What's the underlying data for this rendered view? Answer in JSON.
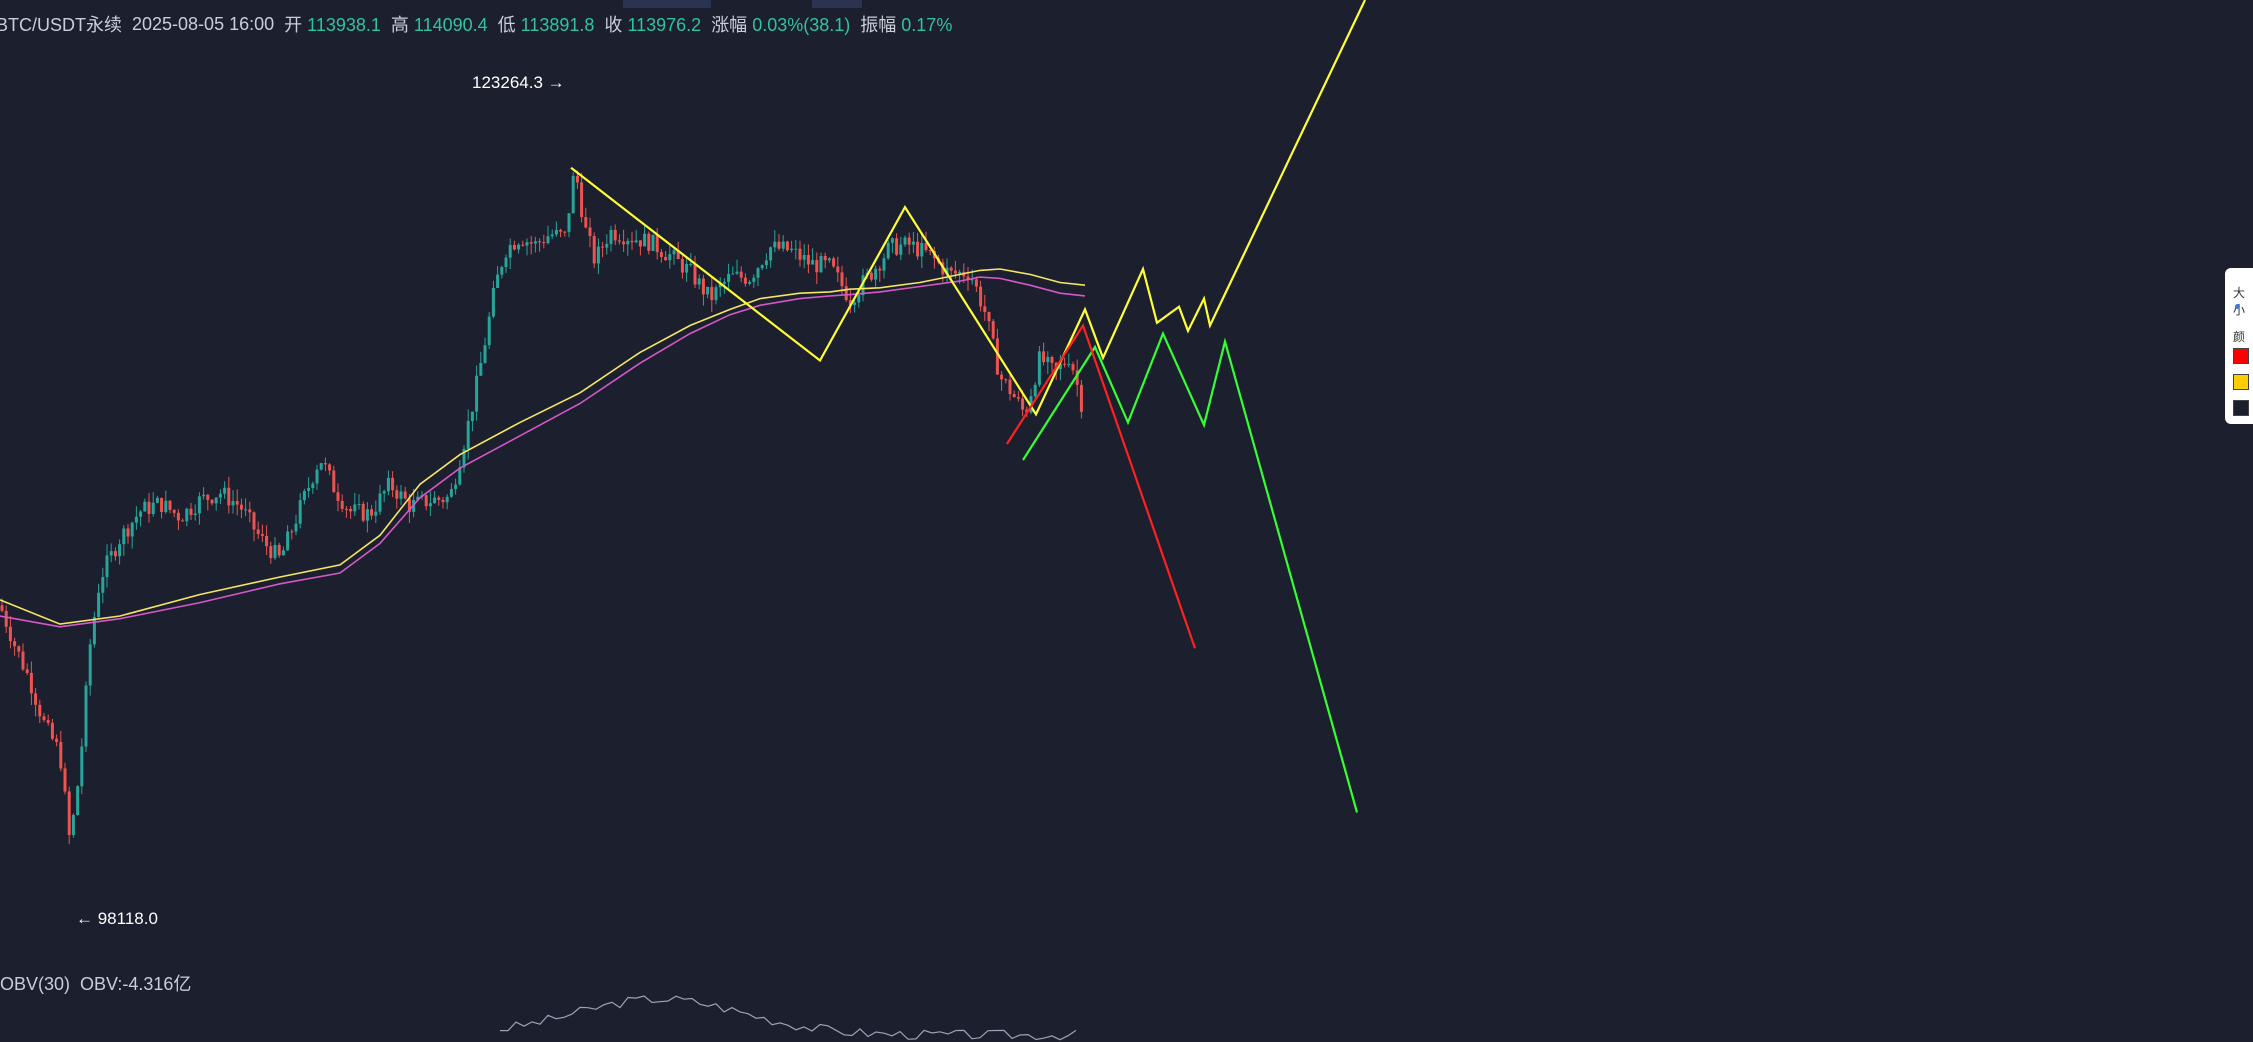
{
  "header": {
    "symbol": "BTC/USDT永续",
    "datetime": "2025-08-05 16:00",
    "open_label": "开",
    "open_value": "113938.1",
    "high_label": "高",
    "high_value": "114090.4",
    "low_label": "低",
    "low_value": "113891.8",
    "close_label": "收",
    "close_value": "113976.2",
    "change_label": "涨幅",
    "change_value": "0.03%(38.1)",
    "amp_label": "振幅",
    "amp_value": "0.17%"
  },
  "markers": {
    "high_label": "123264.3 →",
    "low_label": "← 98118.0"
  },
  "indicator": {
    "name": "OBV(30)",
    "value": "OBV:-4.316亿"
  },
  "side_panel": {
    "size_label": "大小",
    "color_label": "颜色",
    "swatches": [
      "#ff0000",
      "#ffcc00",
      "#1b1f2e"
    ]
  },
  "colors": {
    "background": "#1b1f2e",
    "up": "#26a69a",
    "down": "#ef5350",
    "ma_slow": "#f5e663",
    "ma_fast": "#d458c7",
    "scenario_yellow": "#ffff33",
    "scenario_green": "#33ff33",
    "scenario_red": "#ff2020"
  },
  "chart_data": {
    "type": "line",
    "price_range": [
      94000,
      129500
    ],
    "peak": 123264.3,
    "trough": 98118.0,
    "ma_slow": [
      [
        0,
        107200
      ],
      [
        60,
        106300
      ],
      [
        120,
        106600
      ],
      [
        200,
        107400
      ],
      [
        280,
        108050
      ],
      [
        340,
        108500
      ],
      [
        380,
        109600
      ],
      [
        420,
        111500
      ],
      [
        460,
        112600
      ],
      [
        520,
        113800
      ],
      [
        580,
        114900
      ],
      [
        640,
        116400
      ],
      [
        690,
        117400
      ],
      [
        730,
        118000
      ],
      [
        760,
        118400
      ],
      [
        800,
        118600
      ],
      [
        830,
        118650
      ],
      [
        850,
        118750
      ],
      [
        880,
        118800
      ],
      [
        920,
        119000
      ],
      [
        960,
        119300
      ],
      [
        980,
        119450
      ],
      [
        1000,
        119500
      ],
      [
        1030,
        119300
      ],
      [
        1060,
        119000
      ],
      [
        1085,
        118900
      ]
    ],
    "ma_fast": [
      [
        0,
        106600
      ],
      [
        60,
        106200
      ],
      [
        120,
        106500
      ],
      [
        200,
        107100
      ],
      [
        280,
        107800
      ],
      [
        340,
        108200
      ],
      [
        380,
        109300
      ],
      [
        420,
        111000
      ],
      [
        460,
        112100
      ],
      [
        520,
        113300
      ],
      [
        580,
        114500
      ],
      [
        640,
        116000
      ],
      [
        690,
        117100
      ],
      [
        730,
        117800
      ],
      [
        760,
        118150
      ],
      [
        800,
        118400
      ],
      [
        830,
        118500
      ],
      [
        850,
        118550
      ],
      [
        880,
        118650
      ],
      [
        920,
        118850
      ],
      [
        960,
        119050
      ],
      [
        980,
        119200
      ],
      [
        1000,
        119150
      ],
      [
        1030,
        118900
      ],
      [
        1060,
        118600
      ],
      [
        1085,
        118500
      ]
    ],
    "candle_path": [
      [
        0,
        107000
      ],
      [
        15,
        105500
      ],
      [
        30,
        104200
      ],
      [
        45,
        102500
      ],
      [
        60,
        101500
      ],
      [
        70,
        98118
      ],
      [
        80,
        101000
      ],
      [
        90,
        105500
      ],
      [
        100,
        108000
      ],
      [
        120,
        109500
      ],
      [
        140,
        110500
      ],
      [
        160,
        110800
      ],
      [
        180,
        110300
      ],
      [
        200,
        110900
      ],
      [
        220,
        111200
      ],
      [
        240,
        110700
      ],
      [
        260,
        109500
      ],
      [
        280,
        108700
      ],
      [
        300,
        110600
      ],
      [
        320,
        112500
      ],
      [
        335,
        111300
      ],
      [
        350,
        110500
      ],
      [
        370,
        110400
      ],
      [
        390,
        111500
      ],
      [
        410,
        110700
      ],
      [
        430,
        110900
      ],
      [
        450,
        111000
      ],
      [
        470,
        114000
      ],
      [
        480,
        115800
      ],
      [
        495,
        118800
      ],
      [
        505,
        120200
      ],
      [
        520,
        120700
      ],
      [
        535,
        120400
      ],
      [
        550,
        120800
      ],
      [
        565,
        120700
      ],
      [
        575,
        123264
      ],
      [
        585,
        121000
      ],
      [
        595,
        119800
      ],
      [
        610,
        120900
      ],
      [
        630,
        120700
      ],
      [
        650,
        120500
      ],
      [
        670,
        120000
      ],
      [
        690,
        119400
      ],
      [
        710,
        118400
      ],
      [
        730,
        119200
      ],
      [
        750,
        119200
      ],
      [
        770,
        120300
      ],
      [
        790,
        120200
      ],
      [
        810,
        119700
      ],
      [
        830,
        119600
      ],
      [
        850,
        118400
      ],
      [
        870,
        119300
      ],
      [
        890,
        120300
      ],
      [
        910,
        120400
      ],
      [
        930,
        120000
      ],
      [
        950,
        119300
      ],
      [
        970,
        119400
      ],
      [
        985,
        117900
      ],
      [
        1000,
        115500
      ],
      [
        1010,
        115000
      ],
      [
        1025,
        114100
      ],
      [
        1040,
        116200
      ],
      [
        1055,
        115600
      ],
      [
        1070,
        116300
      ],
      [
        1085,
        113976
      ]
    ],
    "scenario_yellow": [
      [
        571,
        123264
      ],
      [
        820,
        116100
      ],
      [
        905,
        121800
      ],
      [
        1036,
        114100
      ],
      [
        1085,
        118000
      ],
      [
        1103,
        116200
      ],
      [
        1143,
        119500
      ],
      [
        1157,
        117500
      ],
      [
        1179,
        118100
      ],
      [
        1188,
        117200
      ],
      [
        1204,
        118400
      ],
      [
        1210,
        117400
      ],
      [
        1365,
        129500
      ]
    ],
    "scenario_green": [
      [
        1023,
        112400
      ],
      [
        1095,
        116600
      ],
      [
        1128,
        113800
      ],
      [
        1163,
        117100
      ],
      [
        1204,
        113700
      ],
      [
        1225,
        116800
      ],
      [
        1357,
        99300
      ]
    ],
    "scenario_red": [
      [
        1007,
        113000
      ],
      [
        1083,
        117400
      ],
      [
        1195,
        105400
      ]
    ]
  }
}
